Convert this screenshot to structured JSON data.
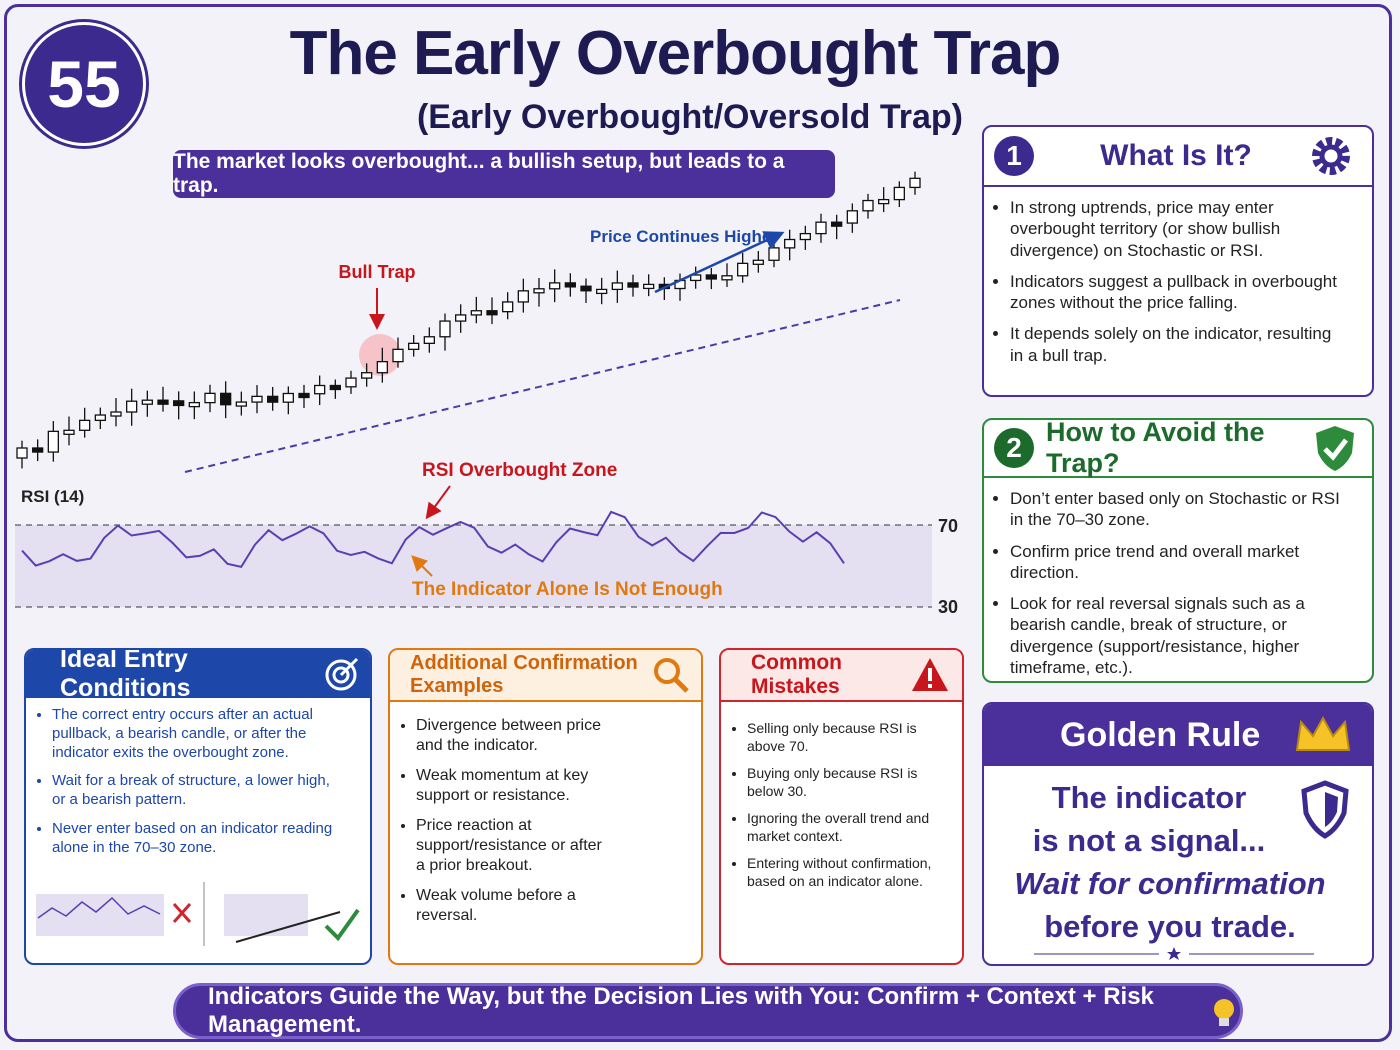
{
  "badge": "55",
  "header": {
    "title": "The Early Overbought Trap",
    "subtitle": "(Early Overbought/Oversold Trap)",
    "banner": "The market looks overbought... a bullish setup, but leads to a trap."
  },
  "chart": {
    "bull_trap": "Bull Trap",
    "price_higher": "Price Continues Higher",
    "rsi_label": "RSI (14)",
    "rsi_zone": "RSI Overbought Zone",
    "not_enough": "The Indicator Alone Is Not Enough",
    "level_high": "70",
    "level_low": "30"
  },
  "what": {
    "number": "1",
    "title": "What Is It?",
    "bullets": [
      "In strong uptrends, price may enter overbought territory (or show bullish divergence) on Stochastic or RSI.",
      "Indicators suggest a pullback in overbought zones without the price falling.",
      "It depends solely on the indicator, resulting in a bull trap."
    ]
  },
  "avoid": {
    "number": "2",
    "title": "How to Avoid the Trap?",
    "bullets": [
      "Don’t enter based only on Stochastic or RSI in the 70–30 zone.",
      "Confirm price trend and overall market direction.",
      "Look for real reversal signals such as a bearish candle, break of structure, or divergence (support/resistance, higher timeframe, etc.)."
    ]
  },
  "golden": {
    "title": "Golden Rule",
    "lines": [
      "The indicator",
      "is not a signal...",
      "Wait for confirmation",
      "before you trade."
    ]
  },
  "ideal": {
    "title": "Ideal Entry Conditions",
    "bullets": [
      "The correct entry occurs after an actual pullback, a bearish candle, or after the indicator exits the overbought zone.",
      "Wait for a break of structure, a lower high, or a bearish pattern.",
      "Never enter based on an indicator reading alone in the 70–30 zone."
    ]
  },
  "additional": {
    "title": "Additional Confirmation Examples",
    "bullets": [
      "Divergence between price and the indicator.",
      "Weak momentum at key support or resistance.",
      "Price reaction at support/resistance or after a prior breakout.",
      "Weak volume before a reversal."
    ]
  },
  "mistakes": {
    "title": "Common Mistakes",
    "bullets": [
      "Selling only because RSI is above 70.",
      "Buying only because RSI is below 30.",
      "Ignoring the overall trend and market context.",
      "Entering without confirmation, based on an indicator alone."
    ]
  },
  "footer": "Indicators Guide the Way, but the Decision Lies with You: Confirm + Context + Risk Management."
}
